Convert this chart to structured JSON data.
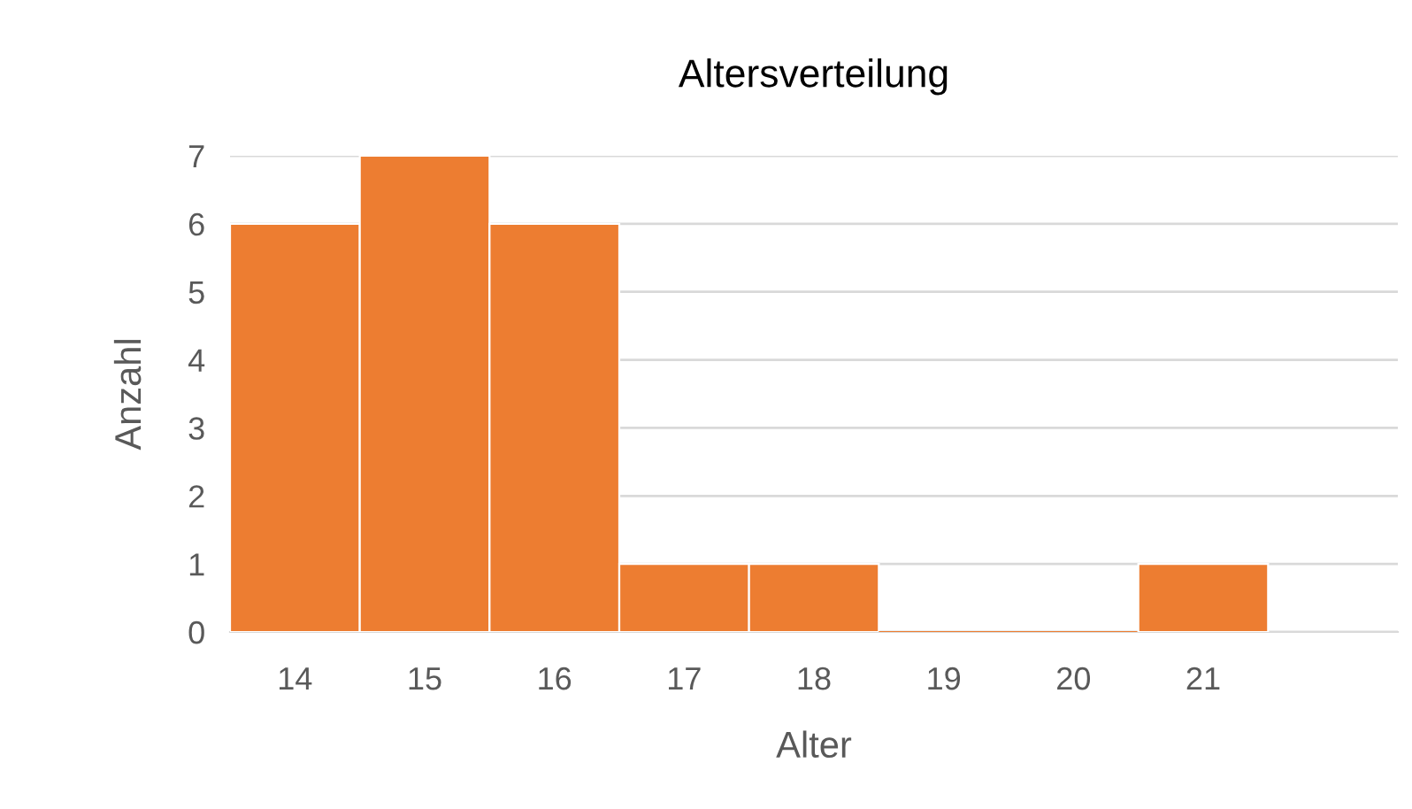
{
  "chart_data": {
    "type": "bar",
    "title": "Altersverteilung",
    "xlabel": "Alter",
    "ylabel": "Anzahl",
    "categories": [
      "14",
      "15",
      "16",
      "17",
      "18",
      "19",
      "20",
      "21",
      null
    ],
    "values": [
      6,
      7,
      6,
      1,
      1,
      0,
      0,
      1,
      null
    ],
    "color": "#ed7d31",
    "ylim": [
      0,
      7
    ],
    "yticks": [
      0,
      1,
      2,
      3,
      4,
      5,
      6,
      7
    ],
    "grid": "y"
  }
}
